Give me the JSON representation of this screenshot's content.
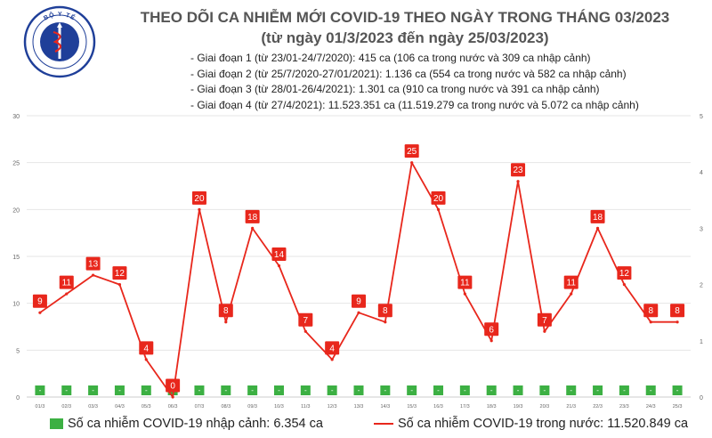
{
  "header": {
    "logo_text": "BỘ Y TẾ",
    "title_line1": "THEO DÕI CA NHIỄM MỚI COVID-19 THEO NGÀY TRONG THÁNG 03/2023",
    "title_line2": "(từ ngày 01/3/2023 đến ngày 25/03/2023)"
  },
  "notes": [
    "- Giai đoạn 1 (từ 23/01-24/7/2020): 415 ca (106 ca trong nước và 309 ca nhập cảnh)",
    "- Giai đoạn 2 (từ 25/7/2020-27/01/2021): 1.136 ca (554 ca trong nước và 582 ca nhập cảnh)",
    "- Giai đoạn 3 (từ 28/01-26/4/2021): 1.301 ca (910 ca trong nước và 391 ca nhập cảnh)",
    "- Giai đoạn 4 (từ 27/4/2021): 11.523.351 ca (11.519.279 ca trong nước và 5.072 ca nhập cảnh)"
  ],
  "legend": {
    "imported": "Số ca nhiễm COVID-19 nhập cảnh: 6.354 ca",
    "domestic": "Số ca nhiễm COVID-19 trong nước: 11.520.849 ca"
  },
  "chart_data": {
    "type": "bar+line",
    "categories": [
      "01/3",
      "02/3",
      "03/3",
      "04/3",
      "05/3",
      "06/3",
      "07/3",
      "08/3",
      "09/3",
      "10/3",
      "11/3",
      "12/3",
      "13/3",
      "14/3",
      "15/3",
      "16/3",
      "17/3",
      "18/3",
      "19/3",
      "20/3",
      "21/3",
      "22/3",
      "23/3",
      "24/3",
      "25/3"
    ],
    "series": [
      {
        "name": "Số ca nhiễm COVID-19 nhập cảnh",
        "type": "bar",
        "axis": "right",
        "color": "#3cb043",
        "values": [
          0,
          0,
          0,
          0,
          0,
          0,
          0,
          0,
          0,
          0,
          0,
          0,
          0,
          0,
          0,
          0,
          0,
          0,
          0,
          0,
          0,
          0,
          0,
          0,
          0
        ],
        "labels": [
          "-",
          "-",
          "-",
          "-",
          "-",
          "-",
          "-",
          "-",
          "-",
          "-",
          "-",
          "-",
          "-",
          "-",
          "-",
          "-",
          "-",
          "-",
          "-",
          "-",
          "-",
          "-",
          "-",
          "-",
          "-"
        ]
      },
      {
        "name": "Số ca nhiễm COVID-19 trong nước",
        "type": "line",
        "axis": "left",
        "color": "#e8271c",
        "values": [
          9,
          11,
          13,
          12,
          4,
          0,
          20,
          8,
          18,
          14,
          7,
          4,
          9,
          8,
          25,
          20,
          11,
          6,
          23,
          7,
          11,
          18,
          12,
          8,
          8
        ]
      }
    ],
    "y_left": {
      "min": 0,
      "max": 30,
      "ticks": [
        0,
        5,
        10,
        15,
        20,
        25,
        30
      ]
    },
    "y_right": {
      "min": 0,
      "max": 5,
      "ticks": [
        0,
        1,
        2,
        3,
        4,
        5
      ]
    },
    "grid": true,
    "legend_position": "bottom"
  }
}
